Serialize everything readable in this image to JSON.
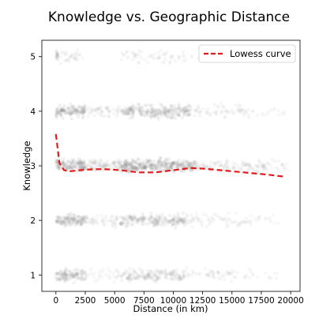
{
  "chart_data": {
    "type": "scatter",
    "title": "Knowledge vs. Geographic Distance",
    "xlabel": "Distance (in km)",
    "ylabel": "Knowledge",
    "xlim": [
      -1200,
      20800
    ],
    "ylim": [
      0.7,
      5.3
    ],
    "xticks": [
      0,
      2500,
      5000,
      7500,
      10000,
      12500,
      15000,
      17500,
      20000
    ],
    "yticks": [
      1,
      2,
      3,
      4,
      5
    ],
    "grid": false,
    "legend": {
      "position": "top-right",
      "entries": [
        "Lowess curve"
      ]
    },
    "colors": {
      "points": "#808080",
      "lowess": "#e31a1c"
    },
    "series": [
      {
        "name": "Lowess curve",
        "type": "line",
        "style": "dashed",
        "x": [
          0,
          300,
          700,
          1200,
          2500,
          4000,
          5500,
          7000,
          8500,
          10000,
          11500,
          12500,
          14000,
          16000,
          18000,
          19500
        ],
        "y": [
          3.58,
          3.05,
          2.92,
          2.9,
          2.93,
          2.94,
          2.92,
          2.88,
          2.88,
          2.92,
          2.96,
          2.95,
          2.92,
          2.88,
          2.84,
          2.8
        ]
      }
    ],
    "point_density": {
      "note": "jittered scatter of observations per knowledge level",
      "levels": [
        {
          "y": 5,
          "bands": [
            [
              0,
              200,
              0.9
            ],
            [
              200,
              2500,
              0.25
            ],
            [
              5500,
              11000,
              0.22
            ],
            [
              11000,
              19000,
              0.08
            ]
          ]
        },
        {
          "y": 4,
          "bands": [
            [
              0,
              2500,
              0.9
            ],
            [
              2500,
              5500,
              0.3
            ],
            [
              5500,
              11500,
              0.75
            ],
            [
              11500,
              17000,
              0.25
            ],
            [
              17000,
              19500,
              0.08
            ]
          ]
        },
        {
          "y": 3,
          "bands": [
            [
              0,
              2500,
              0.95
            ],
            [
              2500,
              5500,
              0.55
            ],
            [
              5500,
              12000,
              0.95
            ],
            [
              12000,
              18000,
              0.35
            ],
            [
              18000,
              19800,
              0.15
            ]
          ]
        },
        {
          "y": 2,
          "bands": [
            [
              0,
              2500,
              0.85
            ],
            [
              2500,
              5500,
              0.3
            ],
            [
              5500,
              11000,
              0.7
            ],
            [
              11000,
              17000,
              0.25
            ],
            [
              17000,
              19500,
              0.08
            ]
          ]
        },
        {
          "y": 1,
          "bands": [
            [
              0,
              2500,
              0.8
            ],
            [
              2500,
              5500,
              0.2
            ],
            [
              5500,
              11000,
              0.55
            ],
            [
              11000,
              16500,
              0.2
            ],
            [
              16500,
              19000,
              0.06
            ]
          ]
        }
      ]
    }
  }
}
